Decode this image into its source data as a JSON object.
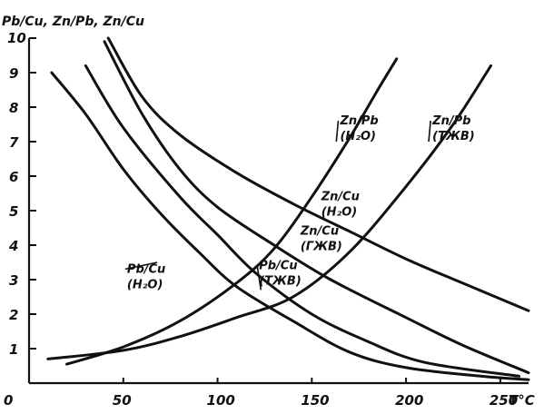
{
  "chart_data": {
    "type": "line",
    "ylabel": "Pb/Cu, Zn/Pb, Zn/Cu",
    "xlabel": "T°C",
    "xlim": [
      0,
      265
    ],
    "ylim": [
      0,
      10
    ],
    "x_ticks": [
      {
        "value": 0,
        "label": "0"
      },
      {
        "value": 50,
        "label": "50"
      },
      {
        "value": 100,
        "label": "100"
      },
      {
        "value": 150,
        "label": "150"
      },
      {
        "value": 200,
        "label": "200"
      },
      {
        "value": 250,
        "label": "250"
      }
    ],
    "y_ticks": [
      {
        "value": 1,
        "label": "1"
      },
      {
        "value": 2,
        "label": "2"
      },
      {
        "value": 3,
        "label": "3"
      },
      {
        "value": 4,
        "label": "4"
      },
      {
        "value": 5,
        "label": "5"
      },
      {
        "value": 6,
        "label": "6"
      },
      {
        "value": 7,
        "label": "7"
      },
      {
        "value": 8,
        "label": "8"
      },
      {
        "value": 9,
        "label": "9"
      },
      {
        "value": 10,
        "label": "10"
      }
    ],
    "series": [
      {
        "id": "zn-pb-h2o",
        "label_lines": [
          "Zn/Pb",
          "(H₂O)"
        ],
        "label_at": [
          165,
          7.5
        ],
        "leader_to": [
          163,
          7.0
        ],
        "points": [
          [
            20,
            0.55
          ],
          [
            50,
            1.05
          ],
          [
            80,
            1.8
          ],
          [
            110,
            2.9
          ],
          [
            130,
            3.9
          ],
          [
            150,
            5.4
          ],
          [
            170,
            7.1
          ],
          [
            185,
            8.5
          ],
          [
            195,
            9.4
          ]
        ]
      },
      {
        "id": "zn-pb-tzhb",
        "label_lines": [
          "Zn/Pb",
          "(TЖB)"
        ],
        "label_at": [
          214,
          7.5
        ],
        "leader_to": [
          212,
          7.0
        ],
        "points": [
          [
            10,
            0.7
          ],
          [
            50,
            0.95
          ],
          [
            80,
            1.35
          ],
          [
            110,
            1.9
          ],
          [
            140,
            2.5
          ],
          [
            170,
            3.8
          ],
          [
            200,
            5.7
          ],
          [
            225,
            7.5
          ],
          [
            245,
            9.2
          ]
        ]
      },
      {
        "id": "zn-cu-h2o",
        "label_lines": [
          "Zn/Cu",
          "(H₂O)"
        ],
        "label_at": [
          155,
          5.3
        ],
        "leader_to": null,
        "points": [
          [
            42,
            10.0
          ],
          [
            60,
            8.3
          ],
          [
            80,
            7.2
          ],
          [
            110,
            6.1
          ],
          [
            140,
            5.2
          ],
          [
            170,
            4.4
          ],
          [
            200,
            3.6
          ],
          [
            230,
            2.9
          ],
          [
            265,
            2.1
          ]
        ]
      },
      {
        "id": "zn-cu-fzhv",
        "label_lines": [
          "Zn/Cu",
          "(ГЖВ)"
        ],
        "label_at": [
          144,
          4.3
        ],
        "leader_to": null,
        "points": [
          [
            40,
            9.9
          ],
          [
            60,
            7.8
          ],
          [
            80,
            6.2
          ],
          [
            100,
            5.1
          ],
          [
            130,
            4.0
          ],
          [
            160,
            3.0
          ],
          [
            200,
            1.9
          ],
          [
            230,
            1.1
          ],
          [
            265,
            0.3
          ]
        ]
      },
      {
        "id": "pb-cu-tzhb",
        "label_lines": [
          "Pb/Cu",
          "(TЖB)"
        ],
        "label_at": [
          122,
          3.3
        ],
        "leader_to": [
          123,
          2.7
        ],
        "points": [
          [
            30,
            9.2
          ],
          [
            50,
            7.4
          ],
          [
            80,
            5.4
          ],
          [
            100,
            4.3
          ],
          [
            120,
            3.2
          ],
          [
            150,
            2.0
          ],
          [
            180,
            1.2
          ],
          [
            210,
            0.6
          ],
          [
            260,
            0.2
          ]
        ]
      },
      {
        "id": "pb-cu-h2o",
        "label_lines": [
          "Pb/Cu",
          "(H₂O)"
        ],
        "label_at": [
          52,
          3.2
        ],
        "leader_to": [
          68,
          3.5
        ],
        "points": [
          [
            12,
            9.0
          ],
          [
            30,
            7.8
          ],
          [
            50,
            6.2
          ],
          [
            70,
            4.9
          ],
          [
            90,
            3.8
          ],
          [
            110,
            2.8
          ],
          [
            140,
            1.8
          ],
          [
            170,
            0.9
          ],
          [
            200,
            0.45
          ],
          [
            240,
            0.2
          ],
          [
            265,
            0.1
          ]
        ]
      }
    ]
  }
}
